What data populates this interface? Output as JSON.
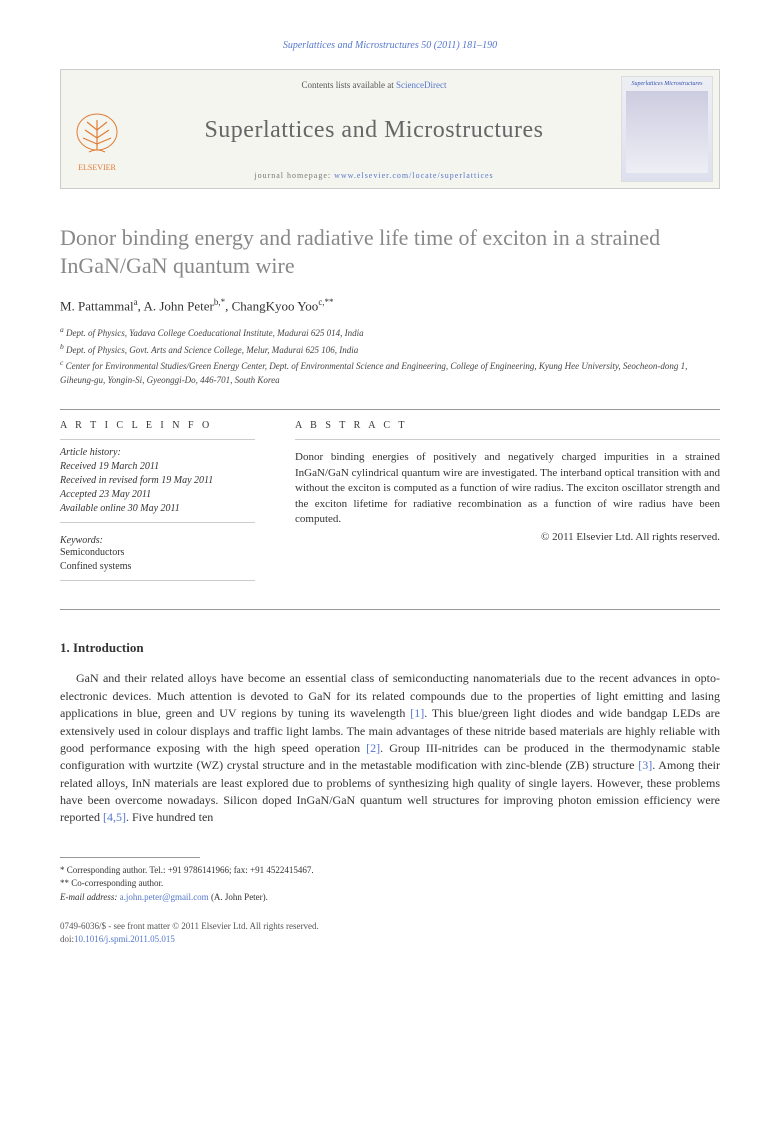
{
  "colors": {
    "link": "#5577cc",
    "title_gray": "#888888",
    "journal_gray": "#666666",
    "rule": "#999999",
    "text": "#333333"
  },
  "header": {
    "citation": "Superlattices and Microstructures 50 (2011) 181–190"
  },
  "banner": {
    "contents_prefix": "Contents lists available at ",
    "contents_link": "ScienceDirect",
    "journal": "Superlattices and Microstructures",
    "homepage_prefix": "journal homepage: ",
    "homepage_url": "www.elsevier.com/locate/superlattices",
    "publisher": "ELSEVIER",
    "cover_label": "Superlattices Microstructures"
  },
  "article": {
    "title": "Donor binding energy and radiative life time of exciton in a strained InGaN/GaN quantum wire",
    "authors_html": "M. Pattammal<sup>a</sup>, A. John Peter<sup>b,*</sup>, ChangKyoo Yoo<sup>c,**</sup>",
    "affiliations": {
      "a": "Dept. of Physics, Yadava College Coeducational Institute, Madurai 625 014, India",
      "b": "Dept. of Physics, Govt. Arts and Science College, Melur, Madurai 625 106, India",
      "c": "Center for Environmental Studies/Green Energy Center, Dept. of Environmental Science and Engineering, College of Engineering, Kyung Hee University, Seocheon-dong 1, Giheung-gu, Yongin-Si, Gyeonggi-Do, 446-701, South Korea"
    }
  },
  "info": {
    "label": "A R T I C L E   I N F O",
    "history_label": "Article history:",
    "received": "Received 19 March 2011",
    "revised": "Received in revised form 19 May 2011",
    "accepted": "Accepted 23 May 2011",
    "online": "Available online 30 May 2011",
    "keywords_label": "Keywords:",
    "keywords": [
      "Semiconductors",
      "Confined systems"
    ]
  },
  "abstract": {
    "label": "A B S T R A C T",
    "text": "Donor binding energies of positively and negatively charged impurities in a strained InGaN/GaN cylindrical quantum wire are investigated. The interband optical transition with and without the exciton is computed as a function of wire radius. The exciton oscillator strength and the exciton lifetime for radiative recombination as a function of wire radius have been computed.",
    "copyright": "© 2011 Elsevier Ltd. All rights reserved."
  },
  "introduction": {
    "heading": "1. Introduction",
    "para1": "GaN and their related alloys have become an essential class of semiconducting nanomaterials due to the recent advances in opto-electronic devices. Much attention is devoted to GaN for its related compounds due to the properties of light emitting and lasing applications in blue, green and UV regions by tuning its wavelength [1]. This blue/green light diodes and wide bandgap LEDs are extensively used in colour displays and traffic light lambs. The main advantages of these nitride based materials are highly reliable with good performance exposing with the high speed operation [2]. Group III-nitrides can be produced in the thermodynamic stable configuration with wurtzite (WZ) crystal structure and in the metastable modification with zinc-blende (ZB) structure [3]. Among their related alloys, InN materials are least explored due to problems of synthesizing high quality of single layers. However, these problems have been overcome nowadays. Silicon doped InGaN/GaN quantum well structures for improving photon emission efficiency were reported [4,5]. Five hundred ten"
  },
  "footnotes": {
    "corr1": "* Corresponding author. Tel.: +91 9786141966; fax: +91 4522415467.",
    "corr2": "** Co-corresponding author.",
    "email_label": "E-mail address: ",
    "email": "a.john.peter@gmail.com",
    "email_suffix": " (A. John Peter)."
  },
  "footer": {
    "issn_line": "0749-6036/$ - see front matter © 2011 Elsevier Ltd. All rights reserved.",
    "doi_label": "doi:",
    "doi": "10.1016/j.spmi.2011.05.015"
  }
}
